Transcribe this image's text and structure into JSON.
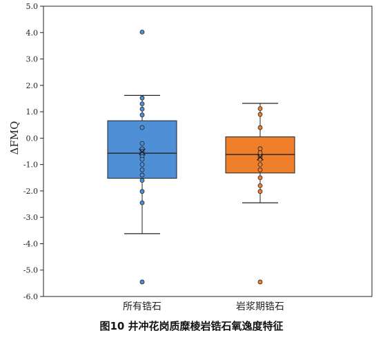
{
  "chart_data": {
    "type": "box",
    "title": "",
    "xlabel": "",
    "ylabel": "ΔFMQ",
    "ylim": [
      -6.0,
      5.0
    ],
    "yticks": [
      5.0,
      4.0,
      3.0,
      2.0,
      1.0,
      0.0,
      -1.0,
      -2.0,
      -3.0,
      -4.0,
      -5.0,
      -6.0
    ],
    "ytick_labels": [
      "5.0",
      "4.0",
      "3.0",
      "2.0",
      "1.0",
      "0.0",
      "-1.0",
      "-2.0",
      "-3.0",
      "-4.0",
      "-5.0",
      "-6.0"
    ],
    "grid": false,
    "categories": [
      "所有锆石",
      "岩浆期锆石"
    ],
    "series": [
      {
        "category": "所有锆石",
        "color": "#4f8fd6",
        "point_color": "#4f8fd6",
        "whisker_low": -3.62,
        "q1": -1.52,
        "median": -0.57,
        "q3": 0.66,
        "whisker_high": 1.62,
        "mean": -0.52,
        "points": [
          4.02,
          1.52,
          1.3,
          1.1,
          0.88,
          0.4,
          -0.2,
          -0.4,
          -0.5,
          -0.6,
          -0.7,
          -0.8,
          -1.0,
          -1.2,
          -1.4,
          -1.6,
          -2.02,
          -2.45,
          -5.45
        ]
      },
      {
        "category": "岩浆期锆石",
        "color": "#f07f2c",
        "point_color": "#f07f2c",
        "whisker_low": -2.45,
        "q1": -1.32,
        "median": -0.62,
        "q3": 0.05,
        "whisker_high": 1.32,
        "mean": -0.72,
        "points": [
          1.12,
          0.9,
          0.4,
          -0.4,
          -0.55,
          -0.7,
          -0.8,
          -1.0,
          -1.2,
          -1.5,
          -1.8,
          -2.02,
          -5.45
        ]
      }
    ]
  },
  "caption": "图10   井冲花岗质糜棱岩锆石氧逸度特征"
}
